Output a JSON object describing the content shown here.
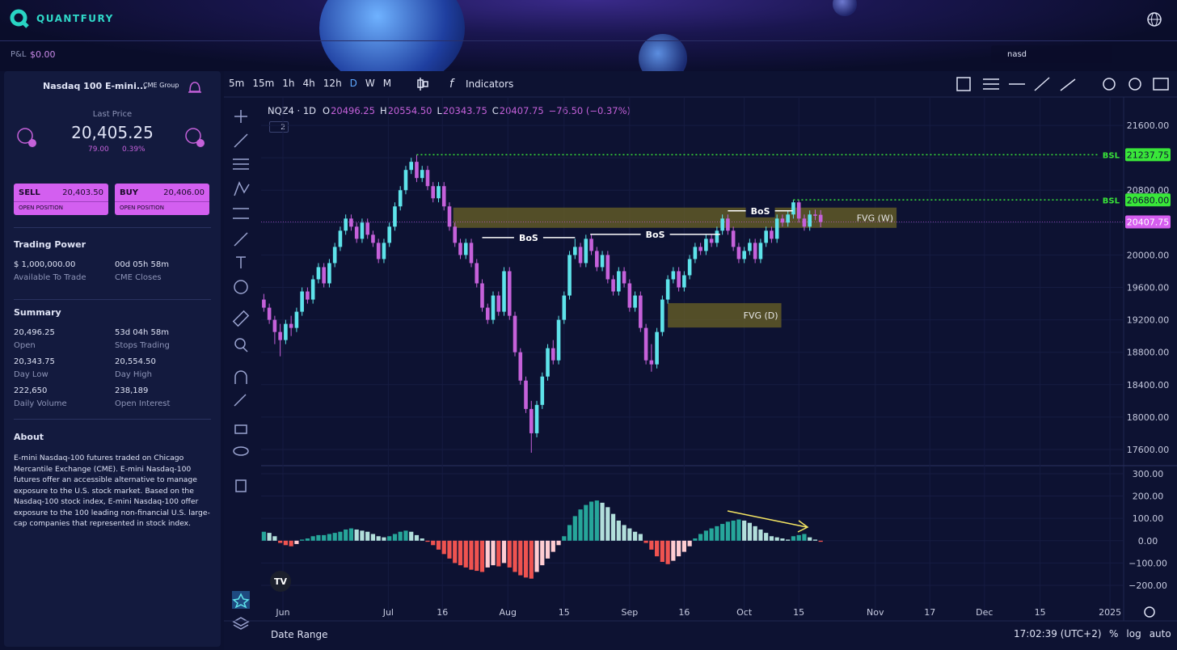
{
  "header": {
    "brand": "QUANTFURY",
    "pnl_label": "P&L",
    "pnl_value": "$0.00",
    "search": "nasd"
  },
  "sidebar": {
    "instrument": "Nasdaq 100 E-mini...",
    "exchange": "CME Group",
    "last_price_label": "Last Price",
    "last_price": "20,405.25",
    "change": "79.00",
    "change_pct": "0.39%",
    "sell": {
      "label": "SELL",
      "price": "20,403.50",
      "action": "OPEN POSITION"
    },
    "buy": {
      "label": "BUY",
      "price": "20,406.00",
      "action": "OPEN POSITION"
    },
    "trading_power": {
      "title": "Trading Power",
      "items": [
        {
          "value": "$ 1,000,000.00",
          "label": "Available To Trade"
        },
        {
          "value": "00d 05h 58m",
          "label": "CME Closes"
        }
      ]
    },
    "summary": {
      "title": "Summary",
      "items": [
        {
          "value": "20,496.25",
          "label": "Open"
        },
        {
          "value": "53d 04h 58m",
          "label": "Stops Trading"
        },
        {
          "value": "20,343.75",
          "label": "Day Low"
        },
        {
          "value": "20,554.50",
          "label": "Day High"
        },
        {
          "value": "222,650",
          "label": "Daily Volume"
        },
        {
          "value": "238,189",
          "label": "Open Interest"
        }
      ]
    },
    "about": {
      "title": "About",
      "text": "E-mini Nasdaq-100 futures traded on Chicago Mercantile Exchange (CME). E-mini Nasdaq-100 futures offer an accessible alternative to manage exposure to the U.S. stock market. Based on the Nasdaq-100 stock index, E-mini Nasdaq-100 offer exposure to the 100 leading non-financial U.S. large-cap companies that represented in stock index."
    }
  },
  "toolbar": {
    "intervals": [
      "5m",
      "15m",
      "1h",
      "4h",
      "12h",
      "D",
      "W",
      "M"
    ],
    "indicators": "Indicators"
  },
  "footer": {
    "date_range": "Date Range",
    "time": "17:02:39 (UTC+2)",
    "options": [
      "%",
      "log",
      "auto"
    ]
  },
  "chart_data": {
    "type": "candlestick",
    "symbol": "NQZ4 · 1D",
    "badge": "2",
    "ohlc_legend": [
      {
        "key": "O",
        "value": "20496.25"
      },
      {
        "key": "H",
        "value": "20554.50"
      },
      {
        "key": "L",
        "value": "20343.75"
      },
      {
        "key": "C",
        "value": "20407.75"
      }
    ],
    "change": "−76.50 (−0.37%)",
    "up_color": "#5ee3ea",
    "down_color": "#c561da",
    "candles": [
      [
        19450,
        19520,
        19300,
        19350
      ],
      [
        19350,
        19400,
        19150,
        19200
      ],
      [
        19200,
        19250,
        18900,
        19050
      ],
      [
        19050,
        19150,
        18750,
        18950
      ],
      [
        18950,
        19200,
        18900,
        19150
      ],
      [
        19150,
        19250,
        19000,
        19100
      ],
      [
        19100,
        19350,
        19050,
        19300
      ],
      [
        19300,
        19600,
        19250,
        19550
      ],
      [
        19550,
        19600,
        19400,
        19450
      ],
      [
        19450,
        19750,
        19400,
        19700
      ],
      [
        19700,
        19900,
        19650,
        19850
      ],
      [
        19850,
        19900,
        19600,
        19650
      ],
      [
        19650,
        19950,
        19600,
        19900
      ],
      [
        19900,
        20150,
        19850,
        20100
      ],
      [
        20100,
        20350,
        20050,
        20300
      ],
      [
        20300,
        20500,
        20250,
        20450
      ],
      [
        20450,
        20500,
        20300,
        20350
      ],
      [
        20350,
        20400,
        20150,
        20200
      ],
      [
        20200,
        20450,
        20150,
        20400
      ],
      [
        20400,
        20450,
        20200,
        20250
      ],
      [
        20250,
        20300,
        20100,
        20150
      ],
      [
        20150,
        20200,
        19900,
        19950
      ],
      [
        19950,
        20200,
        19900,
        20150
      ],
      [
        20150,
        20400,
        20100,
        20350
      ],
      [
        20350,
        20650,
        20300,
        20600
      ],
      [
        20600,
        20850,
        20550,
        20800
      ],
      [
        20800,
        21100,
        20750,
        21050
      ],
      [
        21050,
        21200,
        21000,
        21150
      ],
      [
        21150,
        21237.75,
        20900,
        20950
      ],
      [
        20950,
        21100,
        20900,
        21050
      ],
      [
        21050,
        21100,
        20800,
        20850
      ],
      [
        20850,
        20900,
        20650,
        20700
      ],
      [
        20700,
        20900,
        20650,
        20850
      ],
      [
        20850,
        20900,
        20550,
        20600
      ],
      [
        20600,
        20650,
        20300,
        20350
      ],
      [
        20350,
        20400,
        20100,
        20150
      ],
      [
        20150,
        20200,
        19950,
        20000
      ],
      [
        20000,
        20200,
        19950,
        20150
      ],
      [
        20150,
        20200,
        19850,
        19900
      ],
      [
        19900,
        19950,
        19600,
        19650
      ],
      [
        19650,
        19700,
        19300,
        19350
      ],
      [
        19350,
        19400,
        19150,
        19200
      ],
      [
        19200,
        19550,
        19150,
        19500
      ],
      [
        19500,
        19550,
        19250,
        19300
      ],
      [
        19300,
        19850,
        19250,
        19800
      ],
      [
        19800,
        19850,
        19200,
        19250
      ],
      [
        19250,
        19300,
        18750,
        18800
      ],
      [
        18800,
        18850,
        18400,
        18450
      ],
      [
        18450,
        18500,
        18050,
        18100
      ],
      [
        18100,
        18200,
        17560,
        17800
      ],
      [
        17800,
        18200,
        17750,
        18150
      ],
      [
        18150,
        18550,
        18100,
        18500
      ],
      [
        18500,
        18900,
        18450,
        18850
      ],
      [
        18850,
        18950,
        18650,
        18700
      ],
      [
        18700,
        19250,
        18650,
        19200
      ],
      [
        19200,
        19550,
        19150,
        19500
      ],
      [
        19500,
        20050,
        19450,
        20000
      ],
      [
        20000,
        20200,
        19950,
        20100
      ],
      [
        20100,
        20150,
        19850,
        19900
      ],
      [
        19900,
        20250,
        19850,
        20200
      ],
      [
        20200,
        20250,
        20000,
        20050
      ],
      [
        20050,
        20100,
        19800,
        19850
      ],
      [
        19850,
        20050,
        19800,
        20000
      ],
      [
        20000,
        20050,
        19650,
        19700
      ],
      [
        19700,
        19750,
        19500,
        19550
      ],
      [
        19550,
        19850,
        19500,
        19800
      ],
      [
        19800,
        19850,
        19600,
        19650
      ],
      [
        19650,
        19700,
        19300,
        19350
      ],
      [
        19350,
        19550,
        19300,
        19500
      ],
      [
        19500,
        19550,
        19050,
        19100
      ],
      [
        19100,
        19150,
        18650,
        18700
      ],
      [
        18700,
        18900,
        18560,
        18650
      ],
      [
        18650,
        19100,
        18600,
        19050
      ],
      [
        19050,
        19500,
        19000,
        19450
      ],
      [
        19450,
        19750,
        19400,
        19700
      ],
      [
        19700,
        19850,
        19650,
        19800
      ],
      [
        19800,
        19850,
        19550,
        19600
      ],
      [
        19600,
        19800,
        19550,
        19750
      ],
      [
        19750,
        20000,
        19700,
        19950
      ],
      [
        19950,
        20150,
        19900,
        20100
      ],
      [
        20100,
        20150,
        20000,
        20050
      ],
      [
        20050,
        20250,
        20000,
        20200
      ],
      [
        20200,
        20250,
        20100,
        20150
      ],
      [
        20150,
        20350,
        20100,
        20300
      ],
      [
        20300,
        20500,
        20250,
        20450
      ],
      [
        20450,
        20500,
        20250,
        20300
      ],
      [
        20300,
        20350,
        20050,
        20100
      ],
      [
        20100,
        20150,
        19900,
        19950
      ],
      [
        19950,
        20100,
        19900,
        20050
      ],
      [
        20050,
        20200,
        20000,
        20150
      ],
      [
        20150,
        20200,
        19900,
        19950
      ],
      [
        19950,
        20200,
        19900,
        20150
      ],
      [
        20150,
        20350,
        20100,
        20300
      ],
      [
        20300,
        20350,
        20150,
        20200
      ],
      [
        20200,
        20500,
        20150,
        20450
      ],
      [
        20450,
        20500,
        20350,
        20400
      ],
      [
        20400,
        20550,
        20350,
        20500
      ],
      [
        20500,
        20680,
        20450,
        20650
      ],
      [
        20650,
        20680,
        20400,
        20450
      ],
      [
        20450,
        20500,
        20300,
        20350
      ],
      [
        20350,
        20550,
        20300,
        20500
      ],
      [
        20500,
        20560,
        20430,
        20484.25
      ],
      [
        20496.25,
        20554.5,
        20343.75,
        20407.75
      ]
    ],
    "xlim": [
      -0.5,
      157.5
    ],
    "xticks": [
      {
        "value": 3.5,
        "label": "Jun"
      },
      {
        "value": 22.8,
        "label": "Jul"
      },
      {
        "value": 32.7,
        "label": "16"
      },
      {
        "value": 44.7,
        "label": "Aug"
      },
      {
        "value": 55,
        "label": "15"
      },
      {
        "value": 67,
        "label": "Sep"
      },
      {
        "value": 77,
        "label": "16"
      },
      {
        "value": 88,
        "label": "Oct"
      },
      {
        "value": 98,
        "label": "15"
      },
      {
        "value": 112,
        "label": "Nov"
      },
      {
        "value": 122,
        "label": "17"
      },
      {
        "value": 132,
        "label": "Dec"
      },
      {
        "value": 142.2,
        "label": "15"
      },
      {
        "value": 155,
        "label": "2025"
      }
    ],
    "ylim": [
      17400,
      21920
    ],
    "yticks": [
      {
        "value": 17600,
        "label": "17600.00"
      },
      {
        "value": 18000,
        "label": "18000.00"
      },
      {
        "value": 18400,
        "label": "18400.00"
      },
      {
        "value": 18800,
        "label": "18800.00"
      },
      {
        "value": 19200,
        "label": "19200.00"
      },
      {
        "value": 19600,
        "label": "19600.00"
      },
      {
        "value": 20000,
        "label": "20000.00"
      },
      {
        "value": 20400,
        "label": "20400.00"
      },
      {
        "value": 20800,
        "label": "20800.00"
      },
      {
        "value": 21200,
        "label": "21200.00"
      },
      {
        "value": 21600,
        "label": "21600.00"
      }
    ],
    "grid": true,
    "levels": [
      {
        "label": "BSL",
        "start": 28,
        "price": {
          "value": 21237.75,
          "label": "21237.75"
        },
        "color": "#39e639"
      },
      {
        "label": "BSL",
        "start": 97,
        "price": {
          "value": 20680,
          "label": "20680.00"
        },
        "color": "#39e639"
      }
    ],
    "last_price": {
      "value": 20407.75,
      "label": "20407.75",
      "color": "#d65ef0"
    },
    "bos": [
      {
        "label": "BoS",
        "price": 20215,
        "x": [
          40,
          57
        ]
      },
      {
        "label": "BoS",
        "price": 20255,
        "x": [
          59.8,
          83.6
        ]
      },
      {
        "label": "BoS",
        "price": 20545,
        "x": [
          85,
          96.9
        ]
      }
    ],
    "fvg": [
      {
        "label": "FVG (W)",
        "x": [
          34.7,
          115.9
        ],
        "y": [
          20335,
          20585
        ]
      },
      {
        "label": "FVG (D)",
        "x": [
          74,
          94.8
        ],
        "y": [
          19105,
          19406
        ]
      }
    ],
    "indicator": {
      "type": "histogram",
      "colors": {
        "pos_up": "#26a69a",
        "pos_down": "#b2dfdb",
        "neg_down": "#ef5350",
        "neg_up": "#ffcdd2"
      },
      "values": [
        40,
        35,
        20,
        -10,
        -20,
        -25,
        -15,
        5,
        10,
        20,
        25,
        25,
        30,
        35,
        40,
        50,
        55,
        50,
        45,
        40,
        30,
        20,
        15,
        20,
        30,
        40,
        45,
        40,
        25,
        10,
        -5,
        -20,
        -40,
        -60,
        -80,
        -100,
        -110,
        -120,
        -130,
        -135,
        -140,
        -120,
        -110,
        -115,
        -100,
        -120,
        -140,
        -155,
        -165,
        -170,
        -140,
        -110,
        -80,
        -50,
        -20,
        20,
        70,
        110,
        140,
        160,
        175,
        180,
        170,
        150,
        120,
        90,
        70,
        55,
        40,
        30,
        -10,
        -40,
        -70,
        -95,
        -105,
        -90,
        -70,
        -50,
        -25,
        10,
        30,
        45,
        55,
        65,
        75,
        85,
        90,
        95,
        90,
        80,
        65,
        50,
        35,
        20,
        15,
        10,
        5,
        20,
        25,
        30,
        15,
        5,
        -5
      ],
      "ylim": [
        -276,
        336
      ],
      "yticks": [
        {
          "value": -200,
          "label": "−200.00"
        },
        {
          "value": -100,
          "label": "−100.00"
        },
        {
          "value": 0,
          "label": "0.00"
        },
        {
          "value": 100,
          "label": "100.00"
        },
        {
          "value": 200,
          "label": "200.00"
        },
        {
          "value": 300,
          "label": "300.00"
        }
      ]
    }
  }
}
